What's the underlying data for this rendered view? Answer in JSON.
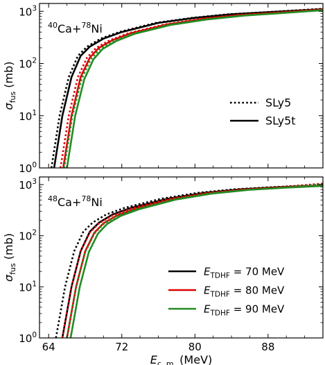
{
  "chart_data": [
    {
      "type": "line",
      "panel": "top",
      "annotation": {
        "mass": "40",
        "base": "Ca+",
        "mass2": "78",
        "base2": "Ni"
      },
      "xlim": [
        63,
        94
      ],
      "ylim_log10": [
        0,
        3.15
      ],
      "y_scale": "log",
      "y_tick_values": [
        1,
        10,
        100,
        1000
      ],
      "y_tick_labels": [
        {
          "base": "10",
          "exp": "0"
        },
        {
          "base": "10",
          "exp": "1"
        },
        {
          "base": "10",
          "exp": "2"
        },
        {
          "base": "10",
          "exp": "3"
        }
      ],
      "ylabel": {
        "sym": "σ",
        "sub": "fus",
        "unit": " (mb)"
      },
      "legend": {
        "placement": "center-right",
        "entries": [
          {
            "label": "SLy5",
            "style": "dotted",
            "color": "#000000"
          },
          {
            "label": "SLy5t",
            "style": "solid",
            "color": "#000000"
          }
        ]
      },
      "series": [
        {
          "color": "#000000",
          "style": "solid",
          "x": [
            64.6,
            65.5,
            66.5,
            67.5,
            68.5,
            70,
            72,
            76,
            80,
            84,
            88,
            94
          ],
          "y": [
            1,
            10,
            55,
            140,
            210,
            300,
            400,
            600,
            750,
            880,
            960,
            1100
          ]
        },
        {
          "color": "#000000",
          "style": "dotted",
          "x": [
            64.3,
            65.2,
            66.2,
            67.2,
            68.2,
            69.7,
            71.7,
            75.7,
            79.7,
            83.7,
            87.7,
            94
          ],
          "y": [
            1,
            10,
            55,
            140,
            210,
            300,
            400,
            600,
            750,
            880,
            960,
            1120
          ]
        },
        {
          "color": "#dd0000",
          "style": "solid",
          "x": [
            65.6,
            66.5,
            67.5,
            68.5,
            69.5,
            71,
            73,
            77,
            81,
            85,
            89,
            94
          ],
          "y": [
            1,
            10,
            55,
            130,
            200,
            280,
            380,
            560,
            720,
            850,
            940,
            1080
          ]
        },
        {
          "color": "#dd0000",
          "style": "dotted",
          "x": [
            65.3,
            66.2,
            67.2,
            68.2,
            69.2,
            70.7,
            72.7,
            76.7,
            80.7,
            84.7,
            88.7,
            94
          ],
          "y": [
            1,
            10,
            55,
            130,
            200,
            280,
            380,
            560,
            720,
            850,
            940,
            1100
          ]
        },
        {
          "color": "#228B22",
          "style": "solid",
          "x": [
            66.0,
            66.9,
            67.9,
            68.9,
            69.9,
            71.4,
            73.4,
            77.4,
            81.4,
            85.4,
            89.4,
            94
          ],
          "y": [
            1,
            10,
            50,
            120,
            190,
            270,
            370,
            550,
            700,
            830,
            920,
            1050
          ]
        },
        {
          "color": "#228B22",
          "style": "dotted",
          "x": [
            65.7,
            66.6,
            67.6,
            68.6,
            69.6,
            71.1,
            73.1,
            77.1,
            81.1,
            85.1,
            89.1,
            94
          ],
          "y": [
            1,
            10,
            50,
            120,
            190,
            270,
            370,
            550,
            700,
            830,
            920,
            1070
          ]
        }
      ]
    },
    {
      "type": "line",
      "panel": "bottom",
      "annotation": {
        "mass": "48",
        "base": "Ca+",
        "mass2": "78",
        "base2": "Ni"
      },
      "xlim": [
        63,
        94
      ],
      "ylim_log10": [
        0,
        3.15
      ],
      "y_scale": "log",
      "x_tick_values": [
        64,
        72,
        80,
        88
      ],
      "x_tick_labels": [
        "64",
        "72",
        "80",
        "88"
      ],
      "y_tick_values": [
        1,
        10,
        100,
        1000
      ],
      "y_tick_labels": [
        {
          "base": "10",
          "exp": "0"
        },
        {
          "base": "10",
          "exp": "1"
        },
        {
          "base": "10",
          "exp": "2"
        },
        {
          "base": "10",
          "exp": "3"
        }
      ],
      "xlabel": {
        "sym": "E",
        "sub": "c. m.",
        "unit": " (MeV)"
      },
      "ylabel": {
        "sym": "σ",
        "sub": "fus",
        "unit": " (mb)"
      },
      "legend": {
        "placement": "lower-right",
        "entries": [
          {
            "sym": "E",
            "sub": "TDHF",
            "rest": " = 70 MeV",
            "color": "#000000"
          },
          {
            "sym": "E",
            "sub": "TDHF",
            "rest": " = 80 MeV",
            "color": "#dd0000"
          },
          {
            "sym": "E",
            "sub": "TDHF",
            "rest": " = 90 MeV",
            "color": "#228B22"
          }
        ]
      },
      "series": [
        {
          "color": "#000000",
          "style": "solid",
          "x": [
            65.5,
            66.5,
            67.5,
            68.5,
            69.5,
            71,
            73,
            77,
            81,
            85,
            89,
            94
          ],
          "y": [
            1,
            10,
            50,
            120,
            180,
            260,
            350,
            530,
            690,
            810,
            890,
            960
          ]
        },
        {
          "color": "#000000",
          "style": "dotted",
          "x": [
            64.8,
            65.8,
            66.8,
            67.8,
            68.8,
            70.3,
            72.3,
            76.3,
            80.3,
            84.3,
            88.3,
            94
          ],
          "y": [
            1,
            10,
            50,
            120,
            180,
            260,
            350,
            530,
            690,
            810,
            890,
            1000
          ]
        },
        {
          "color": "#dd0000",
          "style": "solid",
          "x": [
            66.0,
            67.0,
            68.0,
            69.0,
            70.0,
            71.5,
            73.5,
            77.5,
            81.5,
            85.5,
            89.5,
            94
          ],
          "y": [
            1,
            10,
            50,
            115,
            175,
            250,
            340,
            520,
            680,
            800,
            880,
            950
          ]
        },
        {
          "color": "#dd0000",
          "style": "dotted",
          "x": [
            65.5,
            66.5,
            67.5,
            68.5,
            69.5,
            71,
            73,
            77,
            81,
            85,
            89,
            94
          ],
          "y": [
            1,
            10,
            50,
            115,
            175,
            250,
            340,
            520,
            680,
            800,
            880,
            1050
          ]
        },
        {
          "color": "#228B22",
          "style": "solid",
          "x": [
            66.4,
            67.4,
            68.4,
            69.4,
            70.4,
            71.9,
            73.9,
            77.9,
            81.9,
            85.9,
            89.9,
            94
          ],
          "y": [
            1,
            10,
            48,
            110,
            170,
            245,
            330,
            510,
            670,
            790,
            870,
            940
          ]
        },
        {
          "color": "#228B22",
          "style": "dotted",
          "x": [
            66.0,
            67.0,
            68.0,
            69.0,
            70.0,
            71.5,
            73.5,
            77.5,
            81.5,
            85.5,
            89.5,
            94
          ],
          "y": [
            1,
            10,
            48,
            110,
            170,
            245,
            330,
            510,
            670,
            790,
            870,
            1020
          ]
        }
      ]
    }
  ]
}
